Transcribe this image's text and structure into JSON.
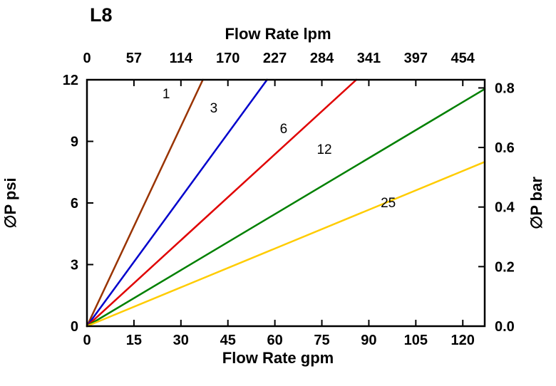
{
  "title": "L8",
  "chart_data": {
    "type": "line",
    "title": "L8",
    "grid": false,
    "legend": "none (inline labels on lines)",
    "x_axis_bottom": {
      "label": "Flow Rate gpm",
      "ticks": [
        "0",
        "15",
        "30",
        "45",
        "60",
        "75",
        "90",
        "105",
        "120"
      ],
      "range": [
        0,
        127
      ]
    },
    "x_axis_top": {
      "label": "Flow Rate lpm",
      "ticks": [
        "0",
        "57",
        "114",
        "170",
        "227",
        "284",
        "341",
        "397",
        "454"
      ],
      "range": [
        0,
        480
      ]
    },
    "y_axis_left": {
      "label": "∅P psi",
      "ticks": [
        "0",
        "3",
        "6",
        "9",
        "12"
      ],
      "range": [
        0,
        12
      ]
    },
    "y_axis_right": {
      "label": "∅P bar",
      "ticks": [
        "0.0",
        "0.2",
        "0.4",
        "0.6",
        "0.8"
      ],
      "range": [
        0,
        0.83
      ],
      "psi_per_bar": 14.5038
    },
    "series": [
      {
        "name": "1",
        "color": "#993300",
        "points": [
          [
            0,
            0
          ],
          [
            37,
            12
          ]
        ],
        "label_pos": [
          25.3,
          11.1
        ]
      },
      {
        "name": "3",
        "color": "#0000CC",
        "points": [
          [
            0,
            0
          ],
          [
            57.5,
            12
          ]
        ],
        "label_pos": [
          40.5,
          10.4
        ]
      },
      {
        "name": "6",
        "color": "#E00000",
        "points": [
          [
            0,
            0
          ],
          [
            86,
            12
          ]
        ],
        "label_pos": [
          62.8,
          9.4
        ]
      },
      {
        "name": "12",
        "color": "#008000",
        "points": [
          [
            0,
            0
          ],
          [
            127,
            11.55
          ]
        ],
        "label_pos": [
          75.8,
          8.4
        ]
      },
      {
        "name": "25",
        "color": "#FFCC00",
        "points": [
          [
            0,
            0
          ],
          [
            127,
            8.0
          ]
        ],
        "label_pos": [
          96.2,
          5.8
        ]
      }
    ]
  }
}
